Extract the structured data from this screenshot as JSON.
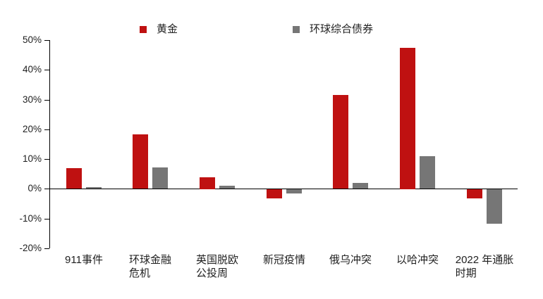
{
  "chart_data": {
    "type": "bar",
    "title": "",
    "xlabel": "",
    "ylabel": "",
    "categories": [
      "911事件",
      "环球金融\n危机",
      "英国脱欧\n公投周",
      "新冠疫情",
      "俄乌冲突",
      "以哈冲突",
      "2022 年通胀\n时期"
    ],
    "series": [
      {
        "name": "黄金",
        "color": "#bf1111",
        "values": [
          6.9,
          18.3,
          4.0,
          -3.0,
          31.5,
          47.5,
          -3.0
        ]
      },
      {
        "name": "环球综合债券",
        "color": "#767676",
        "values": [
          0.5,
          7.2,
          1.0,
          -1.5,
          2.0,
          10.9,
          -11.5
        ]
      }
    ],
    "ylim": [
      -20,
      50
    ],
    "ytick_step": 10,
    "ytick_labels": [
      "50%",
      "40%",
      "30%",
      "20%",
      "10%",
      "0%",
      "-10%",
      "-20%"
    ],
    "grid": false,
    "legend_position": "top",
    "zero_baseline": true
  },
  "colors": {
    "gold": "#bf1111",
    "bonds": "#767676",
    "axis": "#000000",
    "text": "#1f1f1f",
    "background": "#ffffff"
  }
}
